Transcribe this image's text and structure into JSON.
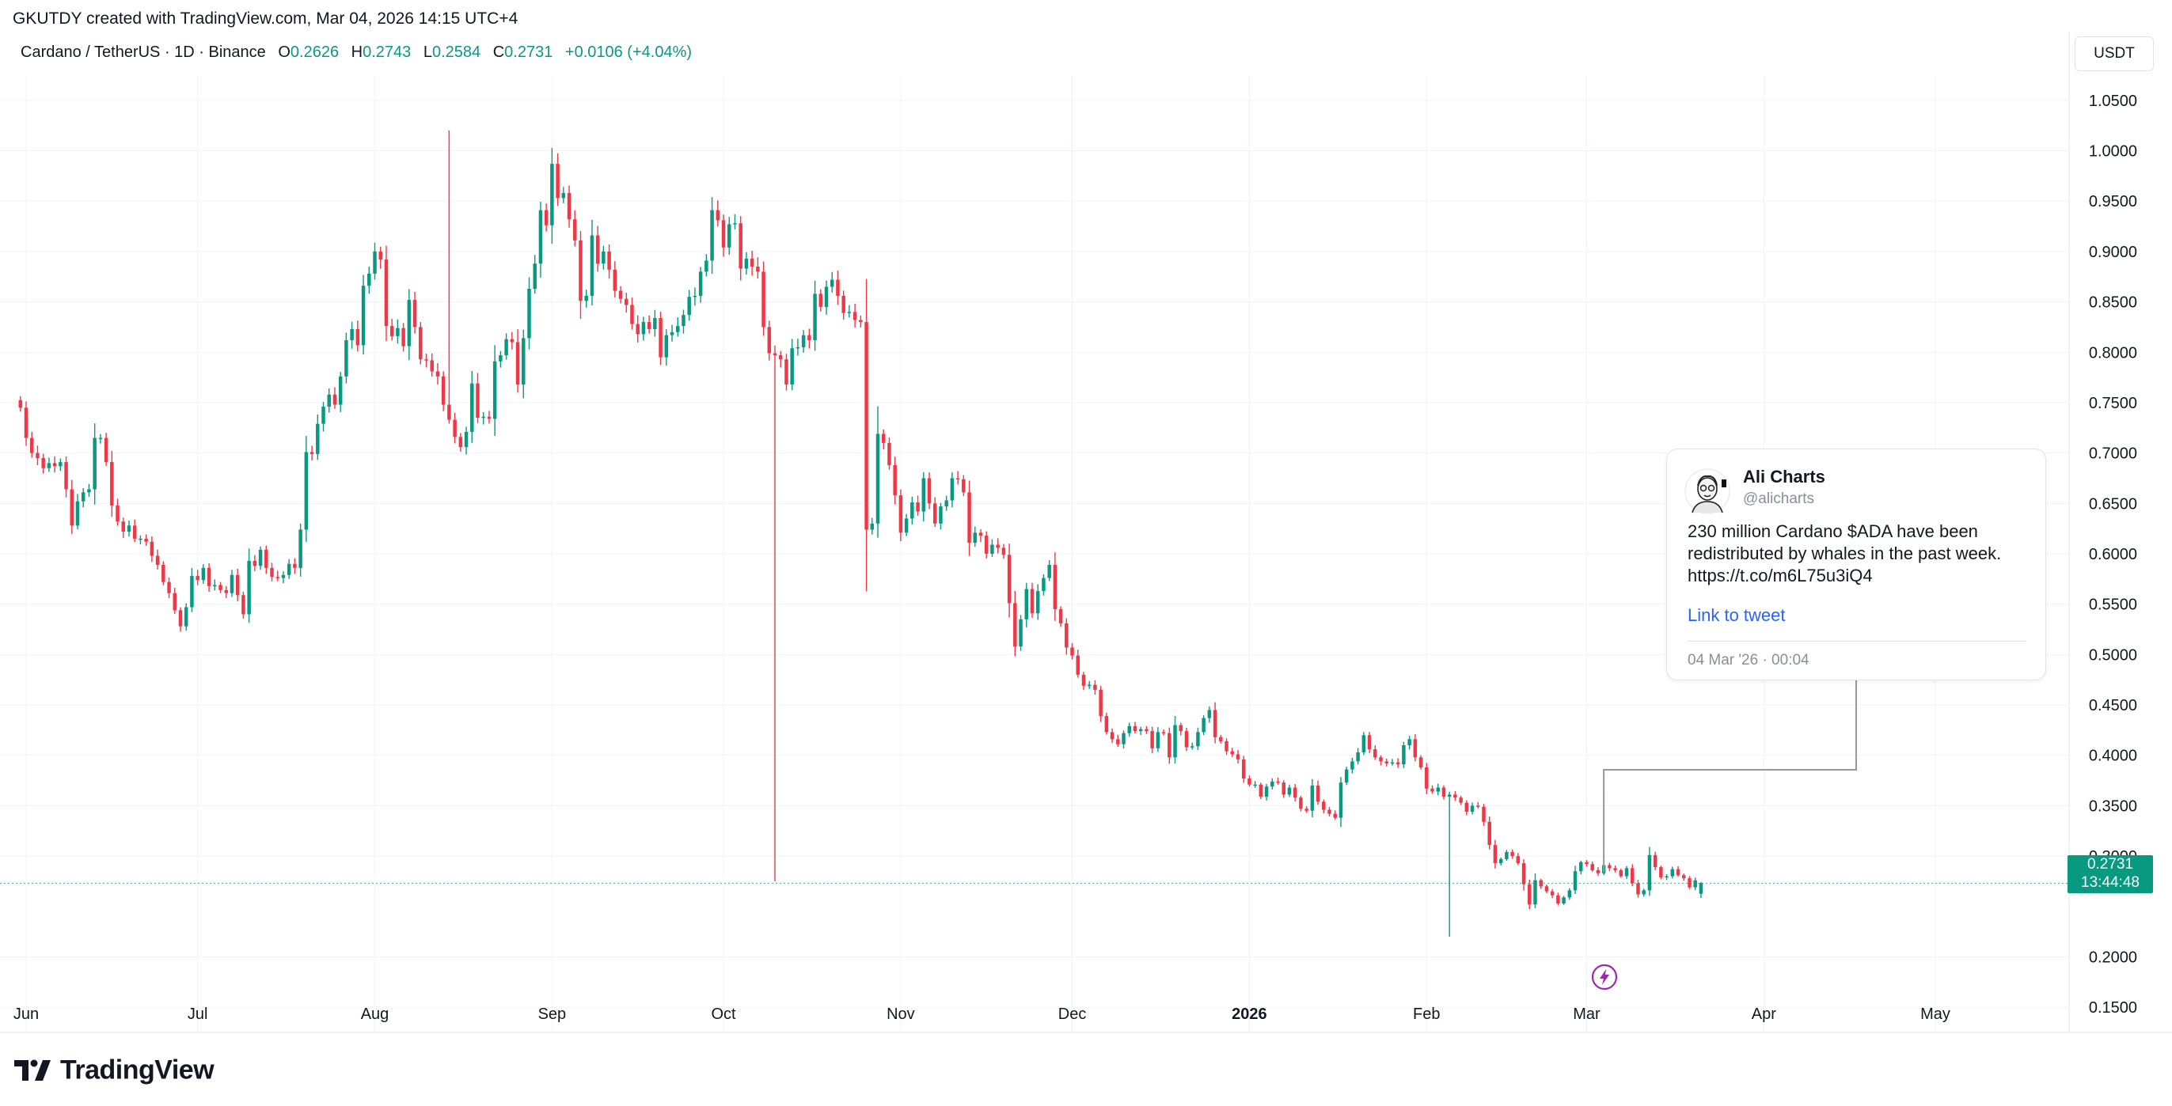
{
  "header": {
    "text": "GKUTDY created with TradingView.com, Mar 04, 2026 14:15 UTC+4"
  },
  "legend": {
    "symbol": "Cardano / TetherUS · 1D · Binance",
    "open_label": "O",
    "open": "0.2626",
    "high_label": "H",
    "high": "0.2743",
    "low_label": "L",
    "low": "0.2584",
    "close_label": "C",
    "close": "0.2731",
    "change": "+0.0106 (+4.04%)"
  },
  "price_scale": {
    "currency": "USDT"
  },
  "last_price": {
    "price": "0.2731",
    "countdown": "13:44:48"
  },
  "tweet": {
    "name": "Ali Charts",
    "handle": "@alicharts",
    "text_lines": [
      "230 million Cardano $ADA have been",
      "redistributed by whales in the past week.",
      "https://t.co/m6L75u3iQ4"
    ],
    "link_label": "Link to tweet",
    "timestamp": "04 Mar '26 · 00:04"
  },
  "branding": {
    "logo_text": "TradingView"
  },
  "colors": {
    "up": "#089981",
    "down": "#f23645",
    "link": "#2962ff"
  },
  "chart_data": {
    "type": "candlestick",
    "title": "Cardano / TetherUS · 1D · Binance",
    "interval": "1D",
    "ylim": [
      0.125,
      1.075
    ],
    "y_ticks": [
      1.05,
      1.0,
      0.95,
      0.9,
      0.85,
      0.8,
      0.75,
      0.7,
      0.65,
      0.6,
      0.55,
      0.5,
      0.45,
      0.4,
      0.35,
      0.3,
      0.2,
      0.15
    ],
    "y_tick_labels": [
      "1.0500",
      "1.0000",
      "0.9500",
      "0.9000",
      "0.8500",
      "0.8000",
      "0.7500",
      "0.7000",
      "0.6500",
      "0.6000",
      "0.5500",
      "0.5000",
      "0.4500",
      "0.4000",
      "0.3500",
      "0.3000",
      "0.2000",
      "0.1500"
    ],
    "x_range": [
      "2025-06-01",
      "2026-05-31"
    ],
    "x_ticks": [
      {
        "date": "2025-06-01",
        "label": "Jun",
        "bold": false
      },
      {
        "date": "2025-07-01",
        "label": "Jul",
        "bold": false
      },
      {
        "date": "2025-08-01",
        "label": "Aug",
        "bold": false
      },
      {
        "date": "2025-09-01",
        "label": "Sep",
        "bold": false
      },
      {
        "date": "2025-10-01",
        "label": "Oct",
        "bold": false
      },
      {
        "date": "2025-11-01",
        "label": "Nov",
        "bold": false
      },
      {
        "date": "2025-12-01",
        "label": "Dec",
        "bold": false
      },
      {
        "date": "2026-01-01",
        "label": "2026",
        "bold": true
      },
      {
        "date": "2026-02-01",
        "label": "Feb",
        "bold": false
      },
      {
        "date": "2026-03-01",
        "label": "Mar",
        "bold": false
      },
      {
        "date": "2026-04-01",
        "label": "Apr",
        "bold": false
      },
      {
        "date": "2026-05-01",
        "label": "May",
        "bold": false
      }
    ],
    "first_date": "2025-05-31",
    "series_closes": [
      0.745,
      0.715,
      0.7,
      0.695,
      0.685,
      0.69,
      0.687,
      0.691,
      0.664,
      0.628,
      0.652,
      0.661,
      0.664,
      0.715,
      0.715,
      0.691,
      0.648,
      0.632,
      0.622,
      0.628,
      0.615,
      0.615,
      0.612,
      0.598,
      0.589,
      0.572,
      0.561,
      0.544,
      0.528,
      0.547,
      0.578,
      0.574,
      0.586,
      0.568,
      0.569,
      0.564,
      0.561,
      0.579,
      0.559,
      0.54,
      0.593,
      0.588,
      0.604,
      0.586,
      0.577,
      0.576,
      0.579,
      0.59,
      0.586,
      0.624,
      0.701,
      0.699,
      0.729,
      0.746,
      0.758,
      0.748,
      0.776,
      0.812,
      0.823,
      0.807,
      0.866,
      0.878,
      0.9,
      0.892,
      0.826,
      0.816,
      0.824,
      0.806,
      0.852,
      0.825,
      0.793,
      0.792,
      0.781,
      0.776,
      0.748,
      0.733,
      0.716,
      0.706,
      0.721,
      0.769,
      0.735,
      0.736,
      0.734,
      0.791,
      0.797,
      0.813,
      0.81,
      0.768,
      0.814,
      0.863,
      0.888,
      0.941,
      0.926,
      0.987,
      0.953,
      0.958,
      0.932,
      0.911,
      0.851,
      0.856,
      0.916,
      0.888,
      0.9,
      0.882,
      0.861,
      0.853,
      0.847,
      0.828,
      0.818,
      0.83,
      0.823,
      0.834,
      0.795,
      0.817,
      0.82,
      0.826,
      0.837,
      0.855,
      0.856,
      0.88,
      0.891,
      0.941,
      0.931,
      0.904,
      0.927,
      0.928,
      0.883,
      0.893,
      0.885,
      0.88,
      0.825,
      0.799,
      0.797,
      0.793,
      0.768,
      0.804,
      0.805,
      0.817,
      0.812,
      0.858,
      0.845,
      0.865,
      0.872,
      0.856,
      0.839,
      0.84,
      0.832,
      0.83,
      0.624,
      0.63,
      0.719,
      0.71,
      0.688,
      0.658,
      0.621,
      0.635,
      0.651,
      0.642,
      0.675,
      0.65,
      0.63,
      0.647,
      0.653,
      0.675,
      0.674,
      0.661,
      0.611,
      0.621,
      0.618,
      0.6,
      0.609,
      0.606,
      0.599,
      0.551,
      0.508,
      0.535,
      0.565,
      0.541,
      0.563,
      0.576,
      0.589,
      0.545,
      0.531,
      0.507,
      0.499,
      0.48,
      0.469,
      0.47,
      0.465,
      0.439,
      0.423,
      0.416,
      0.411,
      0.422,
      0.429,
      0.424,
      0.426,
      0.424,
      0.407,
      0.423,
      0.422,
      0.398,
      0.43,
      0.424,
      0.408,
      0.409,
      0.423,
      0.437,
      0.445,
      0.418,
      0.414,
      0.404,
      0.401,
      0.396,
      0.377,
      0.371,
      0.371,
      0.359,
      0.369,
      0.374,
      0.373,
      0.361,
      0.368,
      0.358,
      0.347,
      0.345,
      0.37,
      0.354,
      0.346,
      0.342,
      0.338,
      0.373,
      0.386,
      0.394,
      0.403,
      0.42,
      0.406,
      0.398,
      0.394,
      0.392,
      0.393,
      0.391,
      0.41,
      0.416,
      0.398,
      0.388,
      0.367,
      0.364,
      0.368,
      0.359,
      0.361,
      0.358,
      0.353,
      0.344,
      0.35,
      0.349,
      0.334,
      0.311,
      0.293,
      0.297,
      0.304,
      0.3,
      0.293,
      0.272,
      0.252,
      0.276,
      0.27,
      0.265,
      0.261,
      0.253,
      0.259,
      0.266,
      0.285,
      0.294,
      0.292,
      0.286,
      0.283,
      0.291,
      0.288,
      0.286,
      0.28,
      0.288,
      0.273,
      0.262,
      0.266,
      0.301,
      0.289,
      0.279,
      0.28,
      0.287,
      0.281,
      0.278,
      0.269,
      0.276,
      0.2731
    ],
    "notable_extremes": [
      {
        "date": "2025-08-14",
        "high": 1.02
      },
      {
        "date": "2025-10-10",
        "low": 0.275
      },
      {
        "date": "2026-02-05",
        "low": 0.22
      }
    ],
    "last": {
      "open": 0.2626,
      "high": 0.2743,
      "low": 0.2584,
      "close": 0.2731
    },
    "price_line": 0.2731,
    "annotation_anchor_date": "2026-03-04",
    "grid": true
  }
}
